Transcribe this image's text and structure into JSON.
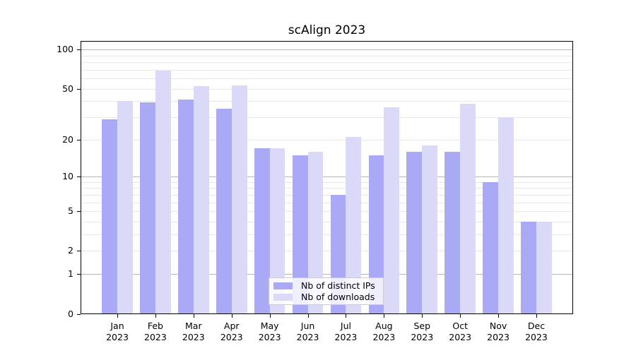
{
  "title": "scAlign 2023",
  "chart_data": {
    "type": "bar",
    "title": "scAlign 2023",
    "categories": [
      "Jan",
      "Feb",
      "Mar",
      "Apr",
      "May",
      "Jun",
      "Jul",
      "Aug",
      "Sep",
      "Oct",
      "Nov",
      "Dec"
    ],
    "x_tick_second_line": "2023",
    "series": [
      {
        "name": "Nb of distinct IPs",
        "color": "#a9a9f5",
        "values": [
          29,
          39,
          41,
          35,
          17,
          15,
          7,
          15,
          16,
          16,
          9,
          4
        ]
      },
      {
        "name": "Nb of downloads",
        "color": "#dadaf8",
        "values": [
          40,
          69,
          52,
          53,
          17,
          16,
          21,
          36,
          18,
          38,
          30,
          4
        ]
      }
    ],
    "y_axis": {
      "scale": "log10(1+value)",
      "tick_values": [
        100,
        50,
        20,
        10,
        5,
        2,
        1,
        0
      ],
      "major_gridline_values": [
        1,
        10,
        100
      ],
      "minor_gridline_values": [
        2,
        3,
        4,
        5,
        6,
        7,
        8,
        9,
        20,
        30,
        40,
        50,
        60,
        70,
        80,
        90
      ],
      "top_value": 116
    },
    "legend_entries": [
      "Nb of distinct IPs",
      "Nb of downloads"
    ],
    "legend_position": "bottom-center",
    "grid": true
  },
  "colors": {
    "bar_distinct_ips": "#a9a9f5",
    "bar_downloads": "#dadaf8",
    "grid_minor": "#e8e8e8",
    "grid_major": "#b5b5b5",
    "axis": "#000000",
    "legend_border": "#cccccc",
    "background": "#ffffff"
  }
}
